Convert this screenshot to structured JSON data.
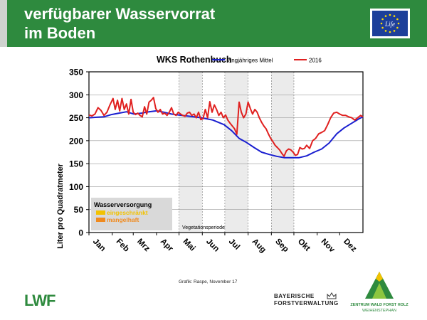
{
  "header": {
    "title_line1": "verfügbarer Wasservorrat",
    "title_line2": "im Boden",
    "eu_logo_text": "Life"
  },
  "chart_data": {
    "type": "line",
    "title": "WKS Rothenbuch",
    "ylabel": "Liter pro Quadratmeter",
    "xlabel": "",
    "ylim": [
      0,
      350
    ],
    "yticks": [
      0,
      50,
      100,
      150,
      200,
      250,
      300,
      350
    ],
    "xlim": [
      0,
      365
    ],
    "months": [
      "Jan",
      "Feb",
      "Mrz",
      "Apr",
      "Mai",
      "Jun",
      "Jul",
      "Aug",
      "Sep",
      "Okt",
      "Nov",
      "Dez"
    ],
    "month_starts": [
      0,
      31,
      59,
      90,
      120,
      151,
      181,
      212,
      243,
      273,
      304,
      334
    ],
    "vegetation_period": [
      120,
      273
    ],
    "vegetation_label": "Vegetationsperiode",
    "legend_position": "top",
    "series": [
      {
        "name": "langjähriges Mittel",
        "color": "#1a1fd0",
        "x": [
          0,
          10,
          20,
          30,
          40,
          50,
          60,
          70,
          80,
          90,
          100,
          110,
          120,
          135,
          150,
          165,
          180,
          190,
          200,
          210,
          220,
          230,
          240,
          250,
          260,
          270,
          280,
          290,
          300,
          310,
          320,
          330,
          340,
          350,
          360,
          365
        ],
        "y": [
          250,
          251,
          252,
          257,
          260,
          263,
          258,
          260,
          263,
          265,
          262,
          258,
          256,
          253,
          250,
          245,
          235,
          222,
          205,
          196,
          185,
          175,
          170,
          166,
          163,
          163,
          163,
          167,
          175,
          182,
          195,
          215,
          228,
          238,
          248,
          252
        ]
      },
      {
        "name": "2016",
        "color": "#e0201f",
        "x": [
          0,
          4,
          8,
          12,
          16,
          20,
          24,
          28,
          32,
          35,
          38,
          41,
          44,
          47,
          50,
          53,
          56,
          59,
          62,
          65,
          68,
          71,
          74,
          77,
          80,
          83,
          86,
          89,
          92,
          95,
          98,
          101,
          104,
          107,
          110,
          113,
          116,
          119,
          122,
          125,
          128,
          131,
          134,
          137,
          140,
          143,
          146,
          149,
          152,
          155,
          158,
          161,
          164,
          167,
          170,
          173,
          176,
          179,
          182,
          185,
          188,
          191,
          194,
          197,
          200,
          203,
          206,
          209,
          212,
          215,
          218,
          221,
          224,
          227,
          230,
          233,
          236,
          239,
          242,
          245,
          248,
          251,
          254,
          257,
          260,
          263,
          266,
          269,
          272,
          275,
          278,
          281,
          284,
          287,
          290,
          294,
          298,
          302,
          306,
          310,
          314,
          318,
          322,
          326,
          330,
          334,
          338,
          342,
          346,
          350,
          354,
          358,
          362,
          365
        ],
        "y": [
          256,
          254,
          258,
          272,
          266,
          255,
          262,
          278,
          292,
          268,
          288,
          265,
          292,
          268,
          280,
          258,
          290,
          262,
          257,
          260,
          255,
          252,
          274,
          258,
          284,
          288,
          294,
          270,
          262,
          268,
          258,
          260,
          255,
          262,
          272,
          258,
          255,
          262,
          258,
          255,
          253,
          260,
          262,
          255,
          258,
          250,
          262,
          246,
          248,
          268,
          250,
          285,
          262,
          278,
          268,
          255,
          262,
          250,
          256,
          245,
          238,
          232,
          226,
          214,
          284,
          262,
          250,
          258,
          284,
          270,
          258,
          268,
          262,
          250,
          240,
          232,
          226,
          215,
          205,
          198,
          190,
          185,
          180,
          172,
          166,
          178,
          182,
          180,
          175,
          168,
          170,
          185,
          182,
          183,
          190,
          183,
          200,
          205,
          215,
          218,
          222,
          235,
          250,
          260,
          262,
          258,
          255,
          255,
          252,
          250,
          245,
          250,
          255,
          252
        ]
      }
    ],
    "wasser_box": {
      "title": "Wasserversorgung",
      "items": [
        {
          "label": "eingeschränkt",
          "color": "#f2c200"
        },
        {
          "label": "mangelhaft",
          "color": "#f08a1e"
        }
      ]
    }
  },
  "footer": {
    "credit": "Grafik: Raspe, November 17",
    "lwf_logo": "LWF",
    "bf_line1": "BAYERISCHE",
    "bf_line2": "FORSTVERWALTUNG",
    "zwf_line1": "ZENTRUM WALD FORST HOLZ",
    "zwf_line2": "WEIHENSTEPHAN"
  }
}
